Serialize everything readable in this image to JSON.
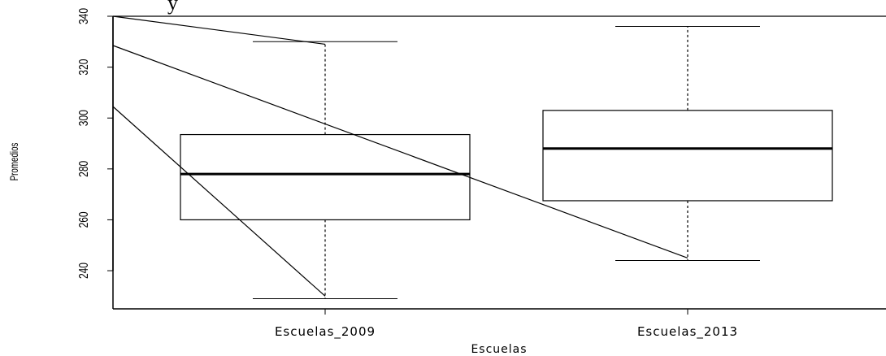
{
  "chart_data": {
    "type": "box",
    "title_fragment": "y",
    "xlabel": "Escuelas",
    "ylabel": "Promedios",
    "ylim": [
      225,
      340
    ],
    "yticks": [
      240,
      260,
      280,
      300,
      320,
      340
    ],
    "grid": false,
    "categories": [
      "Escuelas_2009",
      "Escuelas_2013"
    ],
    "boxes": [
      {
        "category": "Escuelas_2009",
        "whisker_low": 229,
        "q1": 260,
        "median": 278,
        "q3": 293.5,
        "whisker_high": 330
      },
      {
        "category": "Escuelas_2013",
        "whisker_low": 244,
        "q1": 267.5,
        "median": 288,
        "q3": 303,
        "whisker_high": 336
      }
    ],
    "overlay_lines": [
      {
        "points": [
          [
            0.5,
            340
          ],
          [
            2.5,
            340
          ]
        ]
      },
      {
        "points": [
          [
            0.5,
            340
          ],
          [
            1,
            329
          ]
        ]
      },
      {
        "points": [
          [
            0.5,
            328.5
          ],
          [
            2,
            245
          ]
        ]
      },
      {
        "points": [
          [
            0.5,
            304.5
          ],
          [
            1,
            230
          ]
        ]
      }
    ]
  }
}
